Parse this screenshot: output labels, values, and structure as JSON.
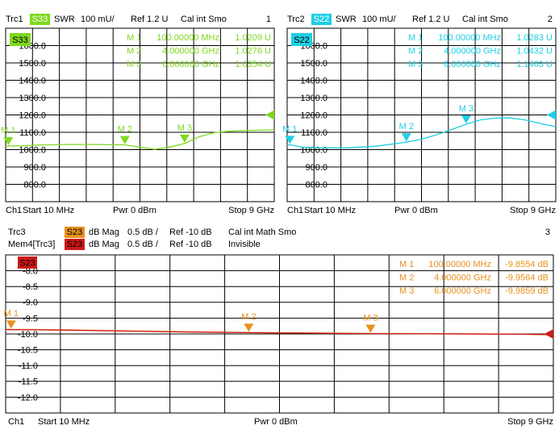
{
  "chart_data": [
    {
      "type": "line",
      "number": "1",
      "channel": "Ch1",
      "start": "Start 10 MHz",
      "power": "Pwr 0 dBm",
      "stop": "Stop 9 GHz",
      "xlim": [
        0.01,
        9
      ],
      "ylim": [
        700,
        1700
      ],
      "yticks": [
        {
          "value": 800,
          "label": "800.0"
        },
        {
          "value": 900,
          "label": "900.0"
        },
        {
          "value": 1000,
          "label": "1000.0"
        },
        {
          "value": 1100,
          "label": "1100.0"
        },
        {
          "value": 1200,
          "label": "1200.0"
        },
        {
          "value": 1300,
          "label": "1300.0"
        },
        {
          "value": 1400,
          "label": "1400.0"
        },
        {
          "value": 1500,
          "label": "1500.0"
        },
        {
          "value": 1600,
          "label": "1600.0"
        }
      ],
      "series": [
        {
          "name": "Trc1",
          "param": "S33",
          "format": "SWR",
          "scale": "100 mU/",
          "ref": "Ref 1.2 U",
          "note": "Cal int Smo",
          "ref_value": 1200,
          "color": "#7fd81e",
          "x": [
            0.01,
            0.1,
            0.5,
            1,
            2,
            3,
            4,
            4.5,
            5,
            5.5,
            6,
            6.5,
            7,
            7.5,
            8,
            8.5,
            9
          ],
          "values": [
            1018,
            1020.9,
            1022,
            1026,
            1030,
            1030,
            1027.6,
            1015,
            1002,
            1015,
            1035.4,
            1075,
            1098,
            1106,
            1110,
            1112,
            1114
          ]
        }
      ],
      "markers": {
        "names": [
          "M 1",
          "M 2",
          "M 3"
        ],
        "stimulus": [
          "100.00000 MHz",
          "4.000000 GHz",
          "6.000000 GHz"
        ],
        "x": [
          0.1,
          4,
          6
        ],
        "values": [
          1020.9,
          1027.6,
          1035.4
        ],
        "value_labels": [
          "1.0209 U",
          "1.0276 U",
          "1.0354 U"
        ]
      }
    },
    {
      "type": "line",
      "number": "2",
      "channel": "Ch1",
      "start": "Start 10 MHz",
      "power": "Pwr 0 dBm",
      "stop": "Stop 9 GHz",
      "xlim": [
        0.01,
        9
      ],
      "ylim": [
        700,
        1700
      ],
      "yticks": [
        {
          "value": 800,
          "label": "800.0"
        },
        {
          "value": 900,
          "label": "900.0"
        },
        {
          "value": 1000,
          "label": "1000.0"
        },
        {
          "value": 1100,
          "label": "1100.0"
        },
        {
          "value": 1200,
          "label": "1200.0"
        },
        {
          "value": 1300,
          "label": "1300.0"
        },
        {
          "value": 1400,
          "label": "1400.0"
        },
        {
          "value": 1500,
          "label": "1500.0"
        },
        {
          "value": 1600,
          "label": "1600.0"
        }
      ],
      "series": [
        {
          "name": "Trc2",
          "param": "S22",
          "format": "SWR",
          "scale": "100 mU/",
          "ref": "Ref 1.2 U",
          "note": "Cal int Smo",
          "ref_value": 1200,
          "color": "#1ecfe4",
          "x": [
            0.01,
            0.1,
            0.5,
            1,
            2,
            3,
            4,
            4.5,
            5,
            5.5,
            6,
            6.5,
            7,
            7.5,
            8,
            8.5,
            9
          ],
          "values": [
            1025,
            1028.3,
            1015,
            1010,
            1010,
            1020,
            1043.2,
            1060,
            1085,
            1115,
            1146.3,
            1172,
            1182,
            1183,
            1170,
            1150,
            1132
          ]
        }
      ],
      "markers": {
        "names": [
          "M 1",
          "M 2",
          "M 3"
        ],
        "stimulus": [
          "100.00000 MHz",
          "4.000000 GHz",
          "6.000000 GHz"
        ],
        "x": [
          0.1,
          4,
          6
        ],
        "values": [
          1028.3,
          1043.2,
          1146.3
        ],
        "value_labels": [
          "1.0283 U",
          "1.0432 U",
          "1.1463 U"
        ]
      }
    },
    {
      "type": "line",
      "number": "3",
      "channel": "Ch1",
      "start": "Start 10 MHz",
      "power": "Pwr 0 dBm",
      "stop": "Stop 9 GHz",
      "xlim": [
        0.01,
        9
      ],
      "ylim": [
        -12.5,
        -7.5
      ],
      "yticks": [
        {
          "value": -8,
          "label": "-8.0"
        },
        -8.5,
        {
          "value": -9,
          "label": "-9.0"
        },
        -9.5,
        {
          "value": -10,
          "label": "-10.0"
        },
        -10.5,
        {
          "value": -11,
          "label": "-11.0"
        },
        -11.5,
        {
          "value": -12,
          "label": "-12.0"
        }
      ],
      "series": [
        {
          "name": "Trc3",
          "param": "S23",
          "format": "dB Mag",
          "scale": "0.5 dB /",
          "ref": "Ref -10 dB",
          "note": "Cal int Math Smo",
          "ref_value": -10,
          "color": "#e8901c",
          "x": [
            0.01,
            0.1,
            0.5,
            1,
            2,
            3,
            4,
            5,
            6,
            7,
            8,
            8.5,
            9
          ],
          "values": [
            -9.85,
            -9.8554,
            -9.86,
            -9.87,
            -9.9,
            -9.93,
            -9.9564,
            -9.97,
            -9.9859,
            -9.99,
            -10.0,
            -10.01,
            -10.03
          ]
        },
        {
          "name": "Mem4[Trc3]",
          "param": "S23",
          "format": "dB Mag",
          "scale": "0.5 dB /",
          "ref": "Ref -10 dB",
          "note": "Invisible",
          "ref_value": -10,
          "color": "#d01818",
          "x": [
            0.01,
            0.1,
            0.5,
            1,
            2,
            3,
            4,
            5,
            6,
            7,
            8,
            8.5,
            9
          ],
          "values": [
            -9.86,
            -9.865,
            -9.87,
            -9.88,
            -9.91,
            -9.94,
            -9.96,
            -9.975,
            -9.99,
            -9.995,
            -10.005,
            -10.01,
            -10.02
          ]
        }
      ],
      "markers": {
        "names": [
          "M 1",
          "M 2",
          "M 3"
        ],
        "stimulus": [
          "100.00000 MHz",
          "4.000000 GHz",
          "6.000000 GHz"
        ],
        "x": [
          0.1,
          4,
          6
        ],
        "values": [
          -9.8554,
          -9.9564,
          -9.9859
        ],
        "value_labels": [
          "-9.8554 dB",
          "-9.9564 dB",
          "-9.9859 dB"
        ]
      }
    }
  ]
}
